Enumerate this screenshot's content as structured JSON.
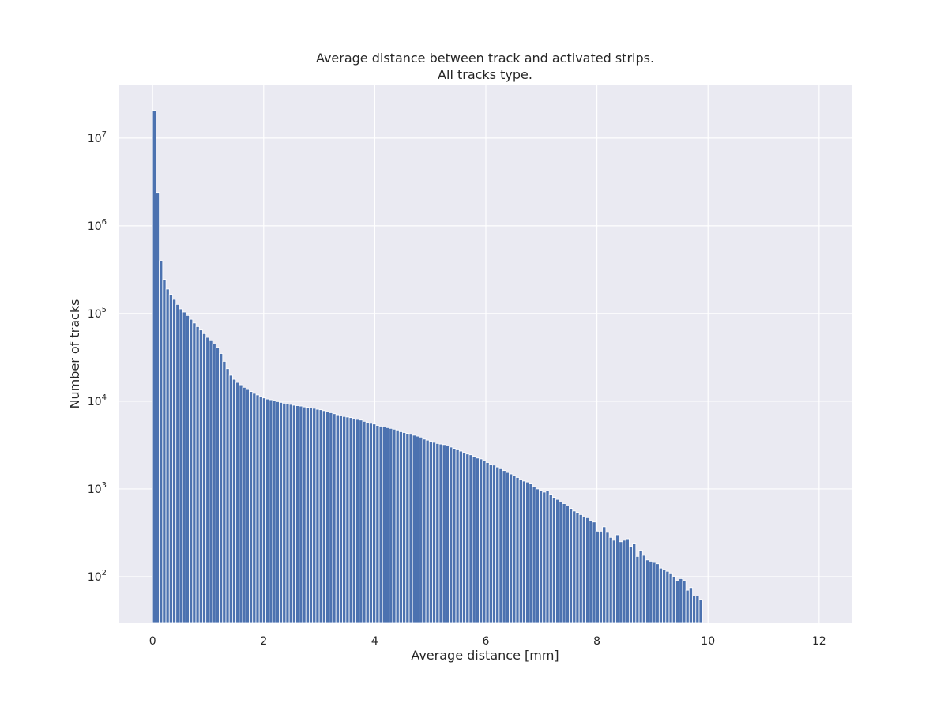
{
  "chart_data": {
    "type": "bar",
    "title": [
      "Average distance between track and activated strips.",
      "All tracks type."
    ],
    "xlabel": "Average distance [mm]",
    "ylabel": "Number of tracks",
    "x_scale": "linear",
    "y_scale": "log",
    "xlim": [
      -0.6,
      12.6
    ],
    "ylim": [
      30,
      40000000
    ],
    "grid": true,
    "legend": "none",
    "x_ticks": [
      {
        "value": 0,
        "label": "0"
      },
      {
        "value": 2,
        "label": "2"
      },
      {
        "value": 4,
        "label": "4"
      },
      {
        "value": 6,
        "label": "6"
      },
      {
        "value": 8,
        "label": "8"
      },
      {
        "value": 10,
        "label": "10"
      },
      {
        "value": 12,
        "label": "12"
      }
    ],
    "y_ticks": [
      {
        "value": 100,
        "base": "10",
        "exp": "2"
      },
      {
        "value": 1000,
        "base": "10",
        "exp": "3"
      },
      {
        "value": 10000,
        "base": "10",
        "exp": "4"
      },
      {
        "value": 100000,
        "base": "10",
        "exp": "5"
      },
      {
        "value": 1000000,
        "base": "10",
        "exp": "6"
      },
      {
        "value": 10000000,
        "base": "10",
        "exp": "7"
      }
    ],
    "bin_start": 0,
    "bin_width": 0.06,
    "values": [
      20700000,
      2400000,
      400000,
      245000,
      190000,
      165000,
      145000,
      127000,
      113000,
      104000,
      95000,
      86000,
      78000,
      71000,
      65000,
      59000,
      53500,
      49000,
      45000,
      41000,
      35000,
      28500,
      23500,
      19800,
      17800,
      16400,
      15400,
      14400,
      13600,
      12900,
      12300,
      11800,
      11300,
      10900,
      10600,
      10400,
      10200,
      9900,
      9700,
      9500,
      9300,
      9200,
      9000,
      8900,
      8800,
      8600,
      8500,
      8400,
      8300,
      8100,
      8000,
      7800,
      7600,
      7400,
      7200,
      7000,
      6800,
      6700,
      6600,
      6500,
      6300,
      6200,
      6100,
      5900,
      5700,
      5600,
      5500,
      5300,
      5200,
      5100,
      5000,
      4900,
      4800,
      4700,
      4500,
      4400,
      4300,
      4200,
      4100,
      4000,
      3900,
      3700,
      3600,
      3500,
      3400,
      3300,
      3250,
      3200,
      3100,
      3000,
      2900,
      2850,
      2700,
      2600,
      2500,
      2450,
      2350,
      2250,
      2200,
      2100,
      2000,
      1900,
      1870,
      1780,
      1700,
      1620,
      1540,
      1480,
      1420,
      1350,
      1280,
      1230,
      1200,
      1140,
      1060,
      1000,
      960,
      920,
      960,
      870,
      800,
      760,
      710,
      680,
      640,
      600,
      560,
      540,
      510,
      480,
      470,
      440,
      420,
      330,
      330,
      370,
      320,
      280,
      260,
      300,
      250,
      260,
      270,
      220,
      240,
      170,
      200,
      175,
      155,
      150,
      145,
      140,
      125,
      120,
      115,
      110,
      100,
      90,
      95,
      90,
      70,
      75,
      60,
      60,
      55
    ]
  }
}
